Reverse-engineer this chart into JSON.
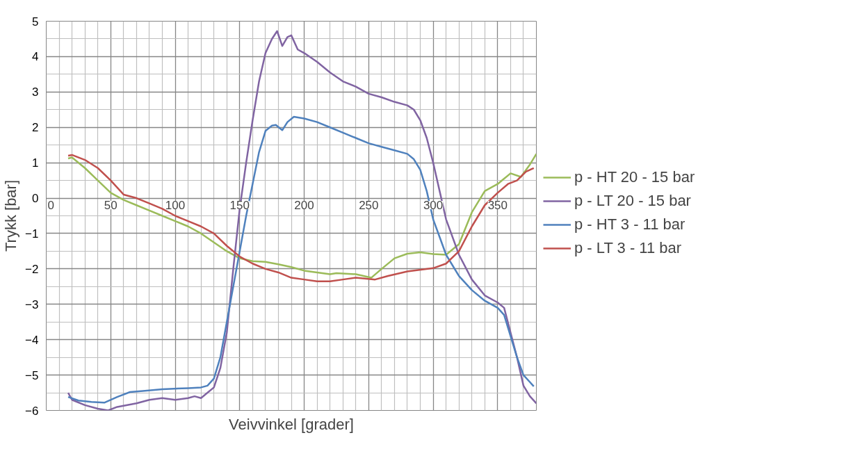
{
  "chart_data": {
    "type": "line",
    "xlabel": "Veivvinkel [grader]",
    "ylabel": "Trykk [bar]",
    "xlim": [
      0,
      380
    ],
    "ylim": [
      -6,
      5
    ],
    "xticks": [
      0,
      50,
      100,
      150,
      200,
      250,
      300,
      350
    ],
    "yticks": [
      -6,
      -5,
      -4,
      -3,
      -2,
      -1,
      0,
      1,
      2,
      3,
      4,
      5
    ],
    "grid": true,
    "legend": "right",
    "marker": "none",
    "line_style": "solid",
    "series": [
      {
        "name": "p - HT 20 - 15 bar",
        "color": "#9bbb59",
        "x": [
          17,
          20,
          30,
          40,
          50,
          60,
          70,
          80,
          90,
          100,
          110,
          120,
          130,
          140,
          150,
          160,
          170,
          180,
          190,
          200,
          210,
          220,
          225,
          240,
          252,
          260,
          270,
          280,
          290,
          300,
          310,
          320,
          330,
          340,
          350,
          355,
          360,
          368,
          375,
          380
        ],
        "values": [
          1.12,
          1.15,
          0.85,
          0.5,
          0.15,
          -0.05,
          -0.2,
          -0.35,
          -0.5,
          -0.65,
          -0.8,
          -1.0,
          -1.25,
          -1.5,
          -1.7,
          -1.78,
          -1.8,
          -1.87,
          -1.95,
          -2.05,
          -2.1,
          -2.15,
          -2.12,
          -2.15,
          -2.25,
          -2.0,
          -1.7,
          -1.57,
          -1.53,
          -1.58,
          -1.6,
          -1.3,
          -0.4,
          0.2,
          0.4,
          0.55,
          0.7,
          0.6,
          0.95,
          1.25
        ]
      },
      {
        "name": "p - LT 20 - 15 bar",
        "color": "#8064a2",
        "x": [
          17,
          20,
          30,
          40,
          48,
          55,
          70,
          80,
          90,
          100,
          110,
          115,
          120,
          125,
          130,
          135,
          140,
          145,
          150,
          155,
          160,
          165,
          170,
          175,
          179,
          183,
          187,
          190,
          195,
          200,
          210,
          220,
          230,
          240,
          250,
          260,
          270,
          280,
          285,
          290,
          295,
          300,
          305,
          310,
          320,
          330,
          340,
          350,
          355,
          360,
          365,
          370,
          375,
          380
        ],
        "values": [
          -5.5,
          -5.7,
          -5.85,
          -5.95,
          -6.0,
          -5.9,
          -5.8,
          -5.7,
          -5.65,
          -5.7,
          -5.65,
          -5.6,
          -5.65,
          -5.5,
          -5.35,
          -4.8,
          -3.8,
          -2.0,
          -0.3,
          1.0,
          2.2,
          3.3,
          4.1,
          4.5,
          4.72,
          4.3,
          4.55,
          4.6,
          4.2,
          4.1,
          3.85,
          3.55,
          3.3,
          3.15,
          2.95,
          2.85,
          2.72,
          2.62,
          2.5,
          2.2,
          1.7,
          1.0,
          0.2,
          -0.6,
          -1.6,
          -2.3,
          -2.75,
          -2.95,
          -3.1,
          -3.8,
          -4.5,
          -5.3,
          -5.6,
          -5.8
        ]
      },
      {
        "name": "p - HT 3 - 11 bar",
        "color": "#4f81bd",
        "x": [
          17,
          25,
          35,
          45,
          55,
          65,
          75,
          90,
          110,
          120,
          125,
          130,
          135,
          140,
          145,
          150,
          155,
          160,
          165,
          170,
          175,
          178,
          183,
          187,
          192,
          200,
          210,
          220,
          230,
          240,
          250,
          260,
          270,
          280,
          285,
          290,
          295,
          300,
          305,
          310,
          320,
          330,
          340,
          350,
          355,
          360,
          365,
          370,
          375,
          378
        ],
        "values": [
          -5.62,
          -5.72,
          -5.76,
          -5.78,
          -5.62,
          -5.48,
          -5.45,
          -5.4,
          -5.37,
          -5.35,
          -5.3,
          -5.1,
          -4.5,
          -3.5,
          -2.5,
          -1.5,
          -0.5,
          0.4,
          1.3,
          1.9,
          2.05,
          2.07,
          1.92,
          2.15,
          2.3,
          2.25,
          2.15,
          2.0,
          1.85,
          1.7,
          1.55,
          1.45,
          1.35,
          1.25,
          1.1,
          0.8,
          0.2,
          -0.6,
          -1.1,
          -1.6,
          -2.2,
          -2.6,
          -2.9,
          -3.1,
          -3.3,
          -3.9,
          -4.5,
          -5.0,
          -5.2,
          -5.32
        ]
      },
      {
        "name": "p - LT 3 - 11 bar",
        "color": "#c0504d",
        "x": [
          17,
          20,
          30,
          40,
          50,
          60,
          65,
          70,
          80,
          90,
          100,
          110,
          120,
          130,
          140,
          150,
          160,
          170,
          180,
          190,
          200,
          210,
          220,
          230,
          240,
          255,
          265,
          280,
          300,
          310,
          320,
          330,
          340,
          350,
          358,
          365,
          372,
          378
        ],
        "values": [
          1.2,
          1.22,
          1.08,
          0.85,
          0.5,
          0.1,
          0.05,
          0.0,
          -0.15,
          -0.3,
          -0.5,
          -0.65,
          -0.8,
          -1.0,
          -1.35,
          -1.65,
          -1.85,
          -2.0,
          -2.1,
          -2.25,
          -2.3,
          -2.35,
          -2.35,
          -2.3,
          -2.25,
          -2.3,
          -2.2,
          -2.07,
          -1.98,
          -1.85,
          -1.5,
          -0.8,
          -0.2,
          0.15,
          0.4,
          0.5,
          0.75,
          0.85
        ]
      }
    ]
  }
}
